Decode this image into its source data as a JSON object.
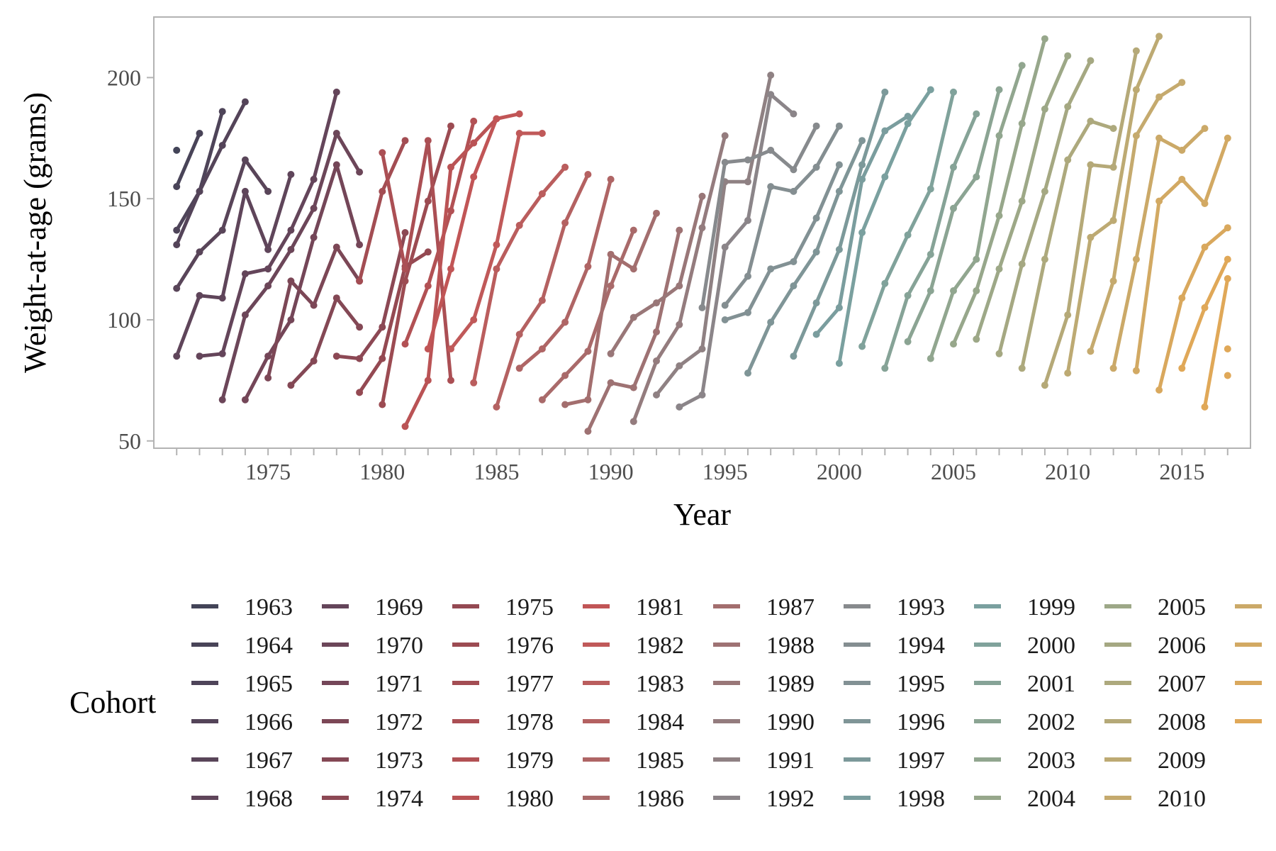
{
  "chart_data": {
    "type": "line",
    "xlabel": "Year",
    "ylabel": "Weight-at-age (grams)",
    "xlim": [
      1970,
      2018
    ],
    "ylim": [
      47,
      225
    ],
    "x_ticks": [
      1975,
      1980,
      1985,
      1990,
      1995,
      2000,
      2005,
      2010,
      2015
    ],
    "y_ticks": [
      50,
      100,
      150,
      200
    ],
    "grid": false,
    "legend_title": "Cohort",
    "legend_position": "bottom",
    "legend_entries": [
      "1963",
      "1964",
      "1965",
      "1966",
      "1967",
      "1968",
      "1969",
      "1970",
      "1971",
      "1972",
      "1973",
      "1974",
      "1975",
      "1976",
      "1977",
      "1978",
      "1979",
      "1980",
      "1981",
      "1982",
      "1983",
      "1984",
      "1985",
      "1986",
      "1987",
      "1988",
      "1989",
      "1990",
      "1991",
      "1992",
      "1993",
      "1994",
      "1995",
      "1996",
      "1997",
      "1998",
      "1999",
      "2000",
      "2001",
      "2002",
      "2003",
      "2004",
      "2005",
      "2006",
      "2007",
      "2008",
      "2009",
      "2010",
      "",
      "",
      "",
      ""
    ],
    "series": [
      {
        "name": "1963",
        "x": [
          1971
        ],
        "y": [
          170
        ]
      },
      {
        "name": "1964",
        "x": [
          1971,
          1972
        ],
        "y": [
          155,
          177
        ]
      },
      {
        "name": "1965",
        "x": [
          1971,
          1972,
          1973
        ],
        "y": [
          137,
          153,
          186
        ]
      },
      {
        "name": "1966",
        "x": [
          1971,
          1972,
          1973,
          1974
        ],
        "y": [
          131,
          153,
          172,
          190
        ]
      },
      {
        "name": "1967",
        "x": [
          1971,
          1972,
          1973,
          1974,
          1975
        ],
        "y": [
          113,
          128,
          137,
          166,
          153
        ]
      },
      {
        "name": "1968",
        "x": [
          1971,
          1972,
          1973,
          1974,
          1975,
          1976
        ],
        "y": [
          85,
          110,
          109,
          153,
          129,
          160
        ]
      },
      {
        "name": "1969",
        "x": [
          1972,
          1973,
          1974,
          1975,
          1976,
          1977,
          1978
        ],
        "y": [
          85,
          86,
          119,
          121,
          137,
          158,
          194
        ]
      },
      {
        "name": "1970",
        "x": [
          1973,
          1974,
          1975,
          1976,
          1977,
          1978,
          1979
        ],
        "y": [
          67,
          102,
          114,
          129,
          146,
          177,
          161
        ]
      },
      {
        "name": "1971",
        "x": [
          1974,
          1975,
          1976,
          1977,
          1978,
          1979
        ],
        "y": [
          67,
          85,
          100,
          134,
          164,
          131
        ]
      },
      {
        "name": "1972",
        "x": [
          1975,
          1976,
          1977,
          1978,
          1979
        ],
        "y": [
          76,
          116,
          106,
          130,
          116
        ]
      },
      {
        "name": "1973",
        "x": [
          1976,
          1977,
          1978,
          1979
        ],
        "y": [
          73,
          83,
          109,
          97
        ]
      },
      {
        "name": "1974",
        "x": [
          1978,
          1979,
          1980,
          1981
        ],
        "y": [
          85,
          84,
          97,
          136
        ]
      },
      {
        "name": "1975",
        "x": [
          1979,
          1980,
          1981,
          1982
        ],
        "y": [
          70,
          84,
          122,
          128
        ]
      },
      {
        "name": "1976",
        "x": [
          1980,
          1981,
          1982,
          1983
        ],
        "y": [
          65,
          116,
          149,
          180
        ]
      },
      {
        "name": "1977",
        "x": [
          1979,
          1980,
          1981
        ],
        "y": [
          116,
          153,
          174
        ]
      },
      {
        "name": "1978",
        "x": [
          1980,
          1981,
          1982,
          1983
        ],
        "y": [
          169,
          121,
          174,
          75
        ]
      },
      {
        "name": "1979",
        "x": [
          1981,
          1982,
          1983,
          1984
        ],
        "y": [
          90,
          114,
          145,
          182
        ]
      },
      {
        "name": "1980",
        "x": [
          1981,
          1982,
          1983,
          1984,
          1985
        ],
        "y": [
          56,
          75,
          163,
          173,
          183
        ]
      },
      {
        "name": "1981",
        "x": [
          1982,
          1983,
          1984,
          1985,
          1986
        ],
        "y": [
          88,
          121,
          159,
          183,
          185
        ]
      },
      {
        "name": "1982",
        "x": [
          1983,
          1984,
          1985,
          1986,
          1987
        ],
        "y": [
          88,
          100,
          131,
          177,
          177
        ]
      },
      {
        "name": "1983",
        "x": [
          1984,
          1985,
          1986,
          1987,
          1988
        ],
        "y": [
          74,
          121,
          139,
          152,
          163
        ]
      },
      {
        "name": "1984",
        "x": [
          1985,
          1986,
          1987,
          1988,
          1989
        ],
        "y": [
          64,
          94,
          108,
          140,
          160
        ]
      },
      {
        "name": "1985",
        "x": [
          1986,
          1987,
          1988,
          1989,
          1990
        ],
        "y": [
          80,
          88,
          99,
          122,
          158
        ]
      },
      {
        "name": "1986",
        "x": [
          1987,
          1988,
          1989,
          1990,
          1991
        ],
        "y": [
          67,
          77,
          87,
          114,
          137
        ]
      },
      {
        "name": "1987",
        "x": [
          1988,
          1989,
          1990,
          1991,
          1992
        ],
        "y": [
          65,
          67,
          127,
          121,
          144
        ]
      },
      {
        "name": "1988",
        "x": [
          1989,
          1990,
          1991,
          1992,
          1993
        ],
        "y": [
          54,
          74,
          72,
          95,
          137
        ]
      },
      {
        "name": "1989",
        "x": [
          1990,
          1991,
          1992,
          1993,
          1994
        ],
        "y": [
          86,
          101,
          107,
          114,
          151
        ]
      },
      {
        "name": "1990",
        "x": [
          1991,
          1992,
          1993,
          1994,
          1995
        ],
        "y": [
          58,
          83,
          98,
          138,
          176
        ]
      },
      {
        "name": "1991",
        "x": [
          1992,
          1993,
          1994,
          1995,
          1996,
          1997
        ],
        "y": [
          69,
          81,
          88,
          157,
          157,
          201
        ]
      },
      {
        "name": "1992",
        "x": [
          1993,
          1994,
          1995,
          1996,
          1997,
          1998
        ],
        "y": [
          64,
          69,
          130,
          141,
          193,
          185
        ]
      },
      {
        "name": "1993",
        "x": [
          1994,
          1995,
          1996,
          1997,
          1998,
          1999
        ],
        "y": [
          105,
          165,
          166,
          170,
          162,
          180
        ]
      },
      {
        "name": "1994",
        "x": [
          1995,
          1996,
          1997,
          1998,
          1999,
          2000
        ],
        "y": [
          106,
          118,
          155,
          153,
          163,
          180
        ]
      },
      {
        "name": "1995",
        "x": [
          1995,
          1996,
          1997,
          1998,
          1999,
          2000
        ],
        "y": [
          100,
          103,
          121,
          124,
          142,
          164
        ]
      },
      {
        "name": "1996",
        "x": [
          1996,
          1997,
          1998,
          1999,
          2000,
          2001
        ],
        "y": [
          78,
          99,
          114,
          128,
          153,
          174
        ]
      },
      {
        "name": "1997",
        "x": [
          1998,
          1999,
          2000,
          2001,
          2002
        ],
        "y": [
          85,
          107,
          129,
          164,
          194
        ]
      },
      {
        "name": "1998",
        "x": [
          1999,
          2000,
          2001,
          2002,
          2003
        ],
        "y": [
          94,
          105,
          158,
          178,
          184
        ]
      },
      {
        "name": "1999",
        "x": [
          2000,
          2001,
          2002,
          2003,
          2004
        ],
        "y": [
          82,
          136,
          159,
          181,
          195
        ]
      },
      {
        "name": "2000",
        "x": [
          2001,
          2002,
          2003,
          2004,
          2005
        ],
        "y": [
          89,
          115,
          135,
          154,
          194
        ]
      },
      {
        "name": "2001",
        "x": [
          2002,
          2003,
          2004,
          2005,
          2006
        ],
        "y": [
          80,
          110,
          127,
          163,
          185
        ]
      },
      {
        "name": "2002",
        "x": [
          2003,
          2004,
          2005,
          2006,
          2007
        ],
        "y": [
          91,
          112,
          146,
          159,
          195
        ]
      },
      {
        "name": "2003",
        "x": [
          2004,
          2005,
          2006,
          2007,
          2008
        ],
        "y": [
          84,
          112,
          125,
          176,
          205
        ]
      },
      {
        "name": "2004",
        "x": [
          2005,
          2006,
          2007,
          2008,
          2009
        ],
        "y": [
          90,
          112,
          143,
          181,
          216
        ]
      },
      {
        "name": "2005",
        "x": [
          2006,
          2007,
          2008,
          2009,
          2010
        ],
        "y": [
          92,
          121,
          149,
          187,
          209
        ]
      },
      {
        "name": "2006",
        "x": [
          2007,
          2008,
          2009,
          2010,
          2011
        ],
        "y": [
          86,
          123,
          153,
          188,
          207
        ]
      },
      {
        "name": "2007",
        "x": [
          2008,
          2009,
          2010,
          2011,
          2012
        ],
        "y": [
          80,
          125,
          166,
          182,
          179
        ]
      },
      {
        "name": "2008",
        "x": [
          2009,
          2010,
          2011,
          2012,
          2013
        ],
        "y": [
          73,
          102,
          164,
          163,
          211
        ]
      },
      {
        "name": "2009",
        "x": [
          2010,
          2011,
          2012,
          2013,
          2014
        ],
        "y": [
          78,
          134,
          141,
          195,
          217
        ]
      },
      {
        "name": "2010",
        "x": [
          2011,
          2012,
          2013,
          2014,
          2015
        ],
        "y": [
          87,
          116,
          176,
          192,
          198
        ]
      },
      {
        "x": [
          2012,
          2013,
          2014,
          2015,
          2016
        ],
        "y": [
          80,
          125,
          175,
          170,
          179
        ]
      },
      {
        "x": [
          2013,
          2014,
          2015,
          2016,
          2017
        ],
        "y": [
          79,
          149,
          158,
          148,
          175
        ]
      },
      {
        "x": [
          2014,
          2015,
          2016,
          2017
        ],
        "y": [
          71,
          109,
          130,
          138
        ]
      },
      {
        "x": [
          2015,
          2016,
          2017
        ],
        "y": [
          80,
          105,
          125
        ]
      },
      {
        "x": [
          2016,
          2017
        ],
        "y": [
          64,
          117
        ]
      },
      {
        "x": [
          2017
        ],
        "y": [
          77
        ]
      },
      {
        "x": [
          2017
        ],
        "y": [
          88
        ]
      }
    ]
  }
}
